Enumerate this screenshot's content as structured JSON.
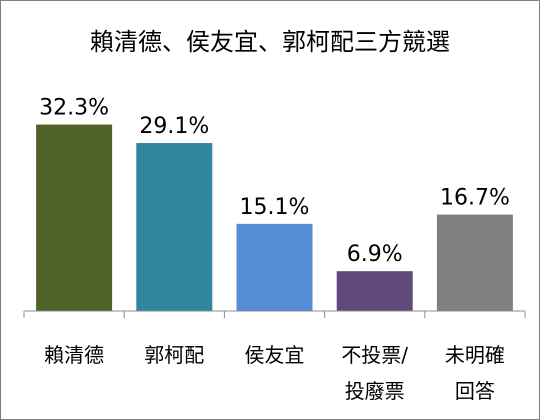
{
  "chart_data": {
    "type": "bar",
    "title": "賴清德、侯友宜、郭柯配三方競選",
    "categories": [
      [
        "賴清德"
      ],
      [
        "郭柯配"
      ],
      [
        "侯友宜"
      ],
      [
        "不投票/",
        "投廢票"
      ],
      [
        "未明確",
        "回答"
      ]
    ],
    "values": [
      32.3,
      29.1,
      15.1,
      6.9,
      16.7
    ],
    "value_labels": [
      "32.3%",
      "29.1%",
      "15.1%",
      "6.9%",
      "16.7%"
    ],
    "colors": [
      "#4f6228",
      "#31859c",
      "#558ed5",
      "#604a7b",
      "#7f7f7f"
    ],
    "ylim": [
      0,
      35
    ],
    "grid": false,
    "legend": "none"
  }
}
